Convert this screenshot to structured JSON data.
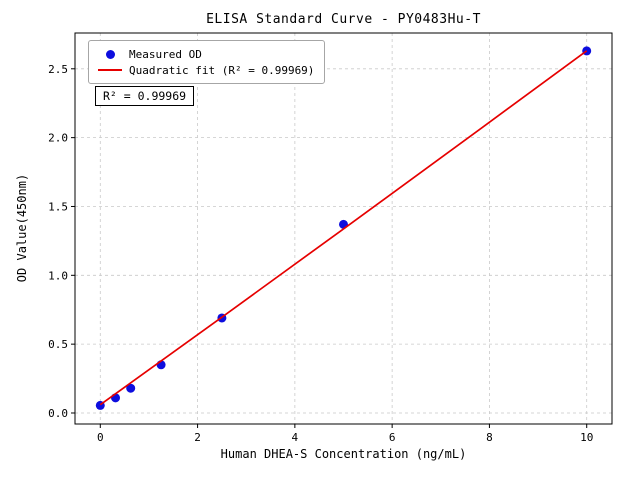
{
  "chart_data": {
    "type": "scatter",
    "title": "ELISA Standard Curve - PY0483Hu-T",
    "xlabel": "Human DHEA-S Concentration (ng/mL)",
    "ylabel": "OD Value(450nm)",
    "xlim": [
      -0.52,
      10.52
    ],
    "ylim": [
      -0.08,
      2.76
    ],
    "xticks": [
      0,
      2,
      4,
      6,
      8,
      10
    ],
    "yticks": [
      0.0,
      0.5,
      1.0,
      1.5,
      2.0,
      2.5
    ],
    "grid": true,
    "grid_color": "#c9c9c9",
    "legend_position": "upper-left",
    "annotation": "R² = 0.99969",
    "series": [
      {
        "name": "Measured OD",
        "type": "scatter",
        "color": "#0d0dde",
        "x": [
          0,
          0.313,
          0.625,
          1.25,
          2.5,
          5,
          10
        ],
        "y": [
          0.055,
          0.11,
          0.18,
          0.35,
          0.69,
          1.37,
          2.63
        ]
      },
      {
        "name": "Quadratic fit (R² = 0.99969)",
        "type": "line",
        "color": "#e60000",
        "x": [
          0,
          2.5,
          5,
          7.5,
          10
        ],
        "y": [
          0.06,
          0.696,
          1.337,
          1.982,
          2.631
        ]
      }
    ]
  }
}
